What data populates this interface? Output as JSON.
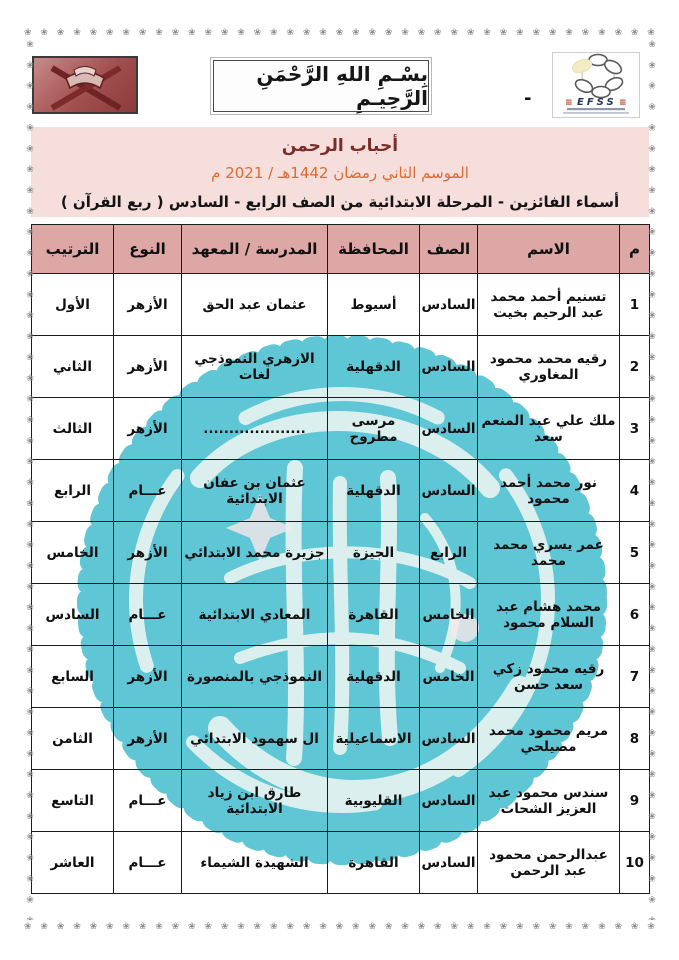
{
  "page": {
    "bismillah": "بِسْـمِ اللهِ الرَّحْمَنِ الرَّحِيـمِ",
    "dash": "-"
  },
  "logo": {
    "text": "EFSS",
    "deco": "≡"
  },
  "decor": {
    "border_glyph": "❀"
  },
  "title": {
    "line1": "أحباب الرحمن",
    "line2": "الموسم الثاني رمضان 1442هـ / 2021 م",
    "line3": "أسماء الفائزين - المرحلة الابتدائية من الصف الرابع - السادس ( ربع القرآن )"
  },
  "table": {
    "headers": [
      "م",
      "الاسم",
      "الصف",
      "المحافظة",
      "المدرسة / المعهد",
      "النوع",
      "الترتيب"
    ],
    "rows": [
      {
        "num": "1",
        "name": "تسنيم أحمد محمد عبد الرحيم بخيت",
        "grade": "السادس",
        "governorate": "أسيوط",
        "school": "عثمان عبد الحق",
        "type": "الأزهر",
        "rank": "الأول"
      },
      {
        "num": "2",
        "name": "رقيه محمد محمود المغاوري",
        "grade": "السادس",
        "governorate": "الدقهلية",
        "school": "الازهري النموذجي لغات",
        "type": "الأزهر",
        "rank": "الثاني"
      },
      {
        "num": "3",
        "name": "ملك علي عبد المنعم سعد",
        "grade": "السادس",
        "governorate": "مرسى مطروح",
        "school": "....................",
        "type": "الأزهر",
        "rank": "الثالث"
      },
      {
        "num": "4",
        "name": "نور محمد أحمد محمود",
        "grade": "السادس",
        "governorate": "الدقهلية",
        "school": "عثمان بن عفان الابتدائية",
        "type": "عـــام",
        "rank": "الرابع"
      },
      {
        "num": "5",
        "name": "عمر يسري محمد محمد",
        "grade": "الرابع",
        "governorate": "الجيزة",
        "school": "جزيرة محمد الابتدائي",
        "type": "الأزهر",
        "rank": "الخامس"
      },
      {
        "num": "6",
        "name": "محمد هشام عبد السلام محمود",
        "grade": "الخامس",
        "governorate": "القاهرة",
        "school": "المعادي الابتدائية",
        "type": "عـــام",
        "rank": "السادس"
      },
      {
        "num": "7",
        "name": "رقيه محمود زكي سعد حسن",
        "grade": "الخامس",
        "governorate": "الدقهلية",
        "school": "النموذجي بالمنصورة",
        "type": "الأزهر",
        "rank": "السابع"
      },
      {
        "num": "8",
        "name": "مريم محمود محمد مصيلحي",
        "grade": "السادس",
        "governorate": "الاسماعيلية",
        "school": "ال سهمود الابتدائي",
        "type": "الأزهر",
        "rank": "الثامن"
      },
      {
        "num": "9",
        "name": "سندس محمود عبد العزيز الشحات",
        "grade": "السادس",
        "governorate": "القليوبية",
        "school": "طارق ابن زياد الابتدائية",
        "type": "عـــام",
        "rank": "التاسع"
      },
      {
        "num": "10",
        "name": "عبدالرحمن محمود عبد الرحمن",
        "grade": "السادس",
        "governorate": "القاهرة",
        "school": "الشهيدة الشيماء",
        "type": "عـــام",
        "rank": "العاشر"
      }
    ]
  },
  "colors": {
    "header_pink": "#dda7a6",
    "title_band_pink": "#f6dedd",
    "title_maroon": "#7b2c29",
    "title_orange": "#dd6a2e",
    "watermark_teal": "#5fc6d5",
    "quran_image_red": "#a34f4f",
    "border_gray": "#8d8d8d"
  }
}
